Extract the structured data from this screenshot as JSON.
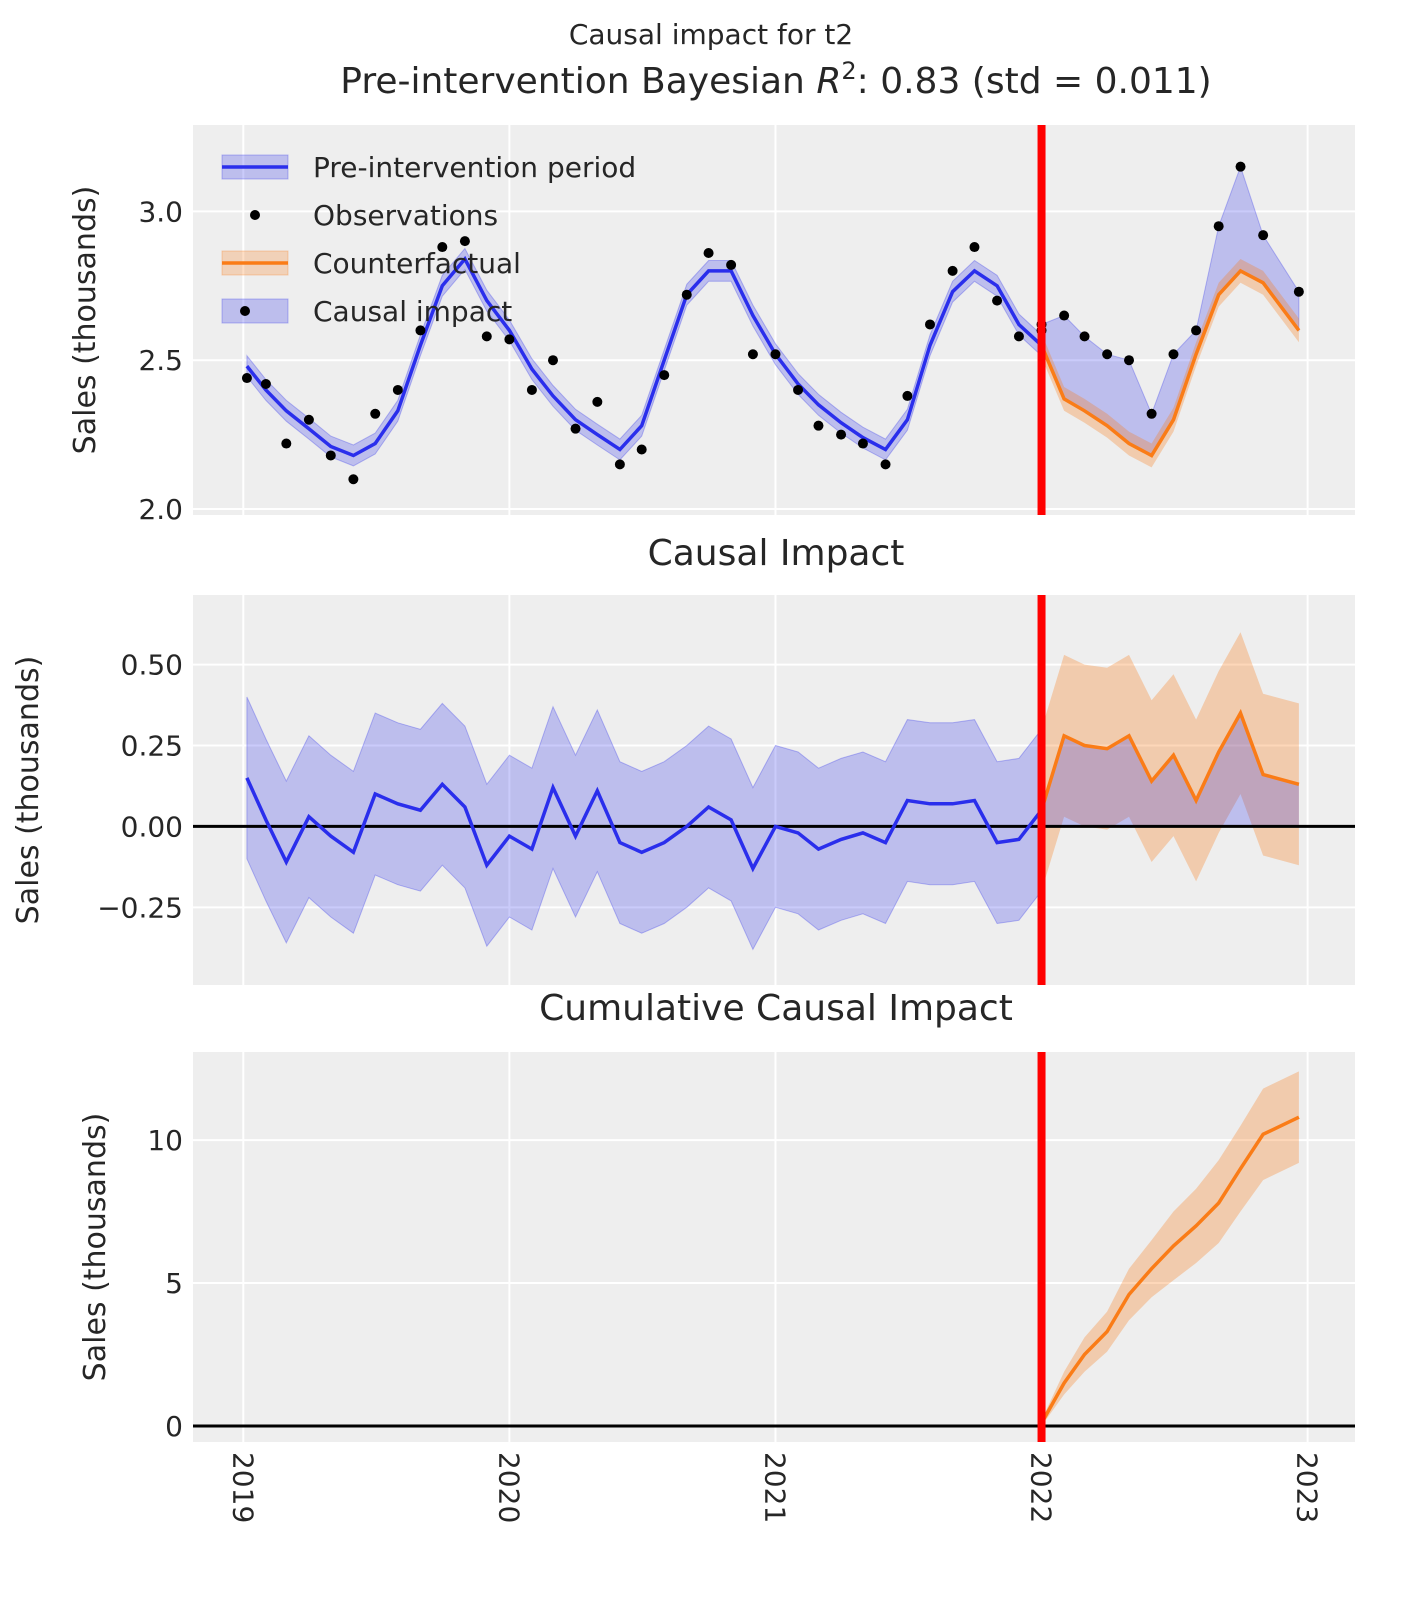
{
  "colors": {
    "pre": "#2a2eec",
    "counterfactual": "#fa7c17",
    "observation": "#000000",
    "intervention": "#ff0000",
    "background": "#eeeeee",
    "grid": "#ffffff"
  },
  "chart_data": [
    {
      "type": "line",
      "suptitle": "Causal impact for t2",
      "title_parts": [
        "Pre-intervention Bayesian ",
        "R",
        "2",
        ": 0.83 (std = 0.011)"
      ],
      "ylabel": "Sales (thousands)",
      "ylim": [
        1.98,
        3.29
      ],
      "xlim": [
        "2018-10-24",
        "2023-03-07"
      ],
      "yticks": [
        {
          "v": 2.0,
          "label": "2.0"
        },
        {
          "v": 2.5,
          "label": "2.5"
        },
        {
          "v": 3.0,
          "label": "3.0"
        }
      ],
      "intervention": "2022-01-01",
      "legend": {
        "placement": "upper-left",
        "entries": [
          "Pre-intervention period",
          "Observations",
          "Counterfactual",
          "Causal impact"
        ]
      },
      "pre": {
        "x": [
          "2019-01-06",
          "2019-02-01",
          "2019-03-01",
          "2019-04-01",
          "2019-05-01",
          "2019-06-01",
          "2019-07-01",
          "2019-08-01",
          "2019-09-01",
          "2019-10-01",
          "2019-11-01",
          "2019-12-01",
          "2020-01-01",
          "2020-02-01",
          "2020-03-01",
          "2020-04-01",
          "2020-05-01",
          "2020-06-01",
          "2020-07-01",
          "2020-08-01",
          "2020-09-01",
          "2020-10-01",
          "2020-11-01",
          "2020-12-01",
          "2021-01-01",
          "2021-02-01",
          "2021-03-01",
          "2021-04-01",
          "2021-05-01",
          "2021-06-01",
          "2021-07-01",
          "2021-08-01",
          "2021-09-01",
          "2021-10-01",
          "2021-11-01",
          "2021-12-01",
          "2022-01-01"
        ],
        "mean": [
          2.48,
          2.4,
          2.33,
          2.27,
          2.21,
          2.18,
          2.22,
          2.33,
          2.55,
          2.75,
          2.84,
          2.7,
          2.6,
          2.47,
          2.38,
          2.3,
          2.25,
          2.2,
          2.28,
          2.5,
          2.72,
          2.8,
          2.8,
          2.65,
          2.52,
          2.42,
          2.35,
          2.29,
          2.24,
          2.2,
          2.3,
          2.55,
          2.73,
          2.8,
          2.75,
          2.62,
          2.55
        ],
        "obs": [
          2.44,
          2.42,
          2.22,
          2.3,
          2.18,
          2.1,
          2.32,
          2.4,
          2.6,
          2.88,
          2.9,
          2.58,
          2.57,
          2.4,
          2.5,
          2.27,
          2.36,
          2.15,
          2.2,
          2.45,
          2.72,
          2.86,
          2.82,
          2.52,
          2.52,
          2.4,
          2.28,
          2.25,
          2.22,
          2.15,
          2.38,
          2.62,
          2.8,
          2.88,
          2.7,
          2.58,
          2.6
        ],
        "band": 0.035
      },
      "post": {
        "x": [
          "2022-01-01",
          "2022-02-01",
          "2022-03-01",
          "2022-04-01",
          "2022-05-01",
          "2022-06-01",
          "2022-07-01",
          "2022-08-01",
          "2022-09-01",
          "2022-10-01",
          "2022-11-01",
          "2022-12-20"
        ],
        "counterfactual": [
          2.55,
          2.37,
          2.33,
          2.28,
          2.22,
          2.18,
          2.3,
          2.52,
          2.72,
          2.8,
          2.76,
          2.6
        ],
        "obs": [
          2.62,
          2.65,
          2.58,
          2.52,
          2.5,
          2.32,
          2.52,
          2.6,
          2.95,
          3.15,
          2.92,
          2.73
        ],
        "band": 0.04
      }
    },
    {
      "type": "line",
      "title": "Causal Impact",
      "ylabel": "Sales (thousands)",
      "ylim": [
        -0.49,
        0.715
      ],
      "yticks": [
        {
          "v": -0.25,
          "label": "−0.25"
        },
        {
          "v": 0,
          "label": "0.00"
        },
        {
          "v": 0.25,
          "label": "0.25"
        },
        {
          "v": 0.5,
          "label": "0.50"
        }
      ],
      "pre_impact": [
        0.15,
        0.02,
        -0.11,
        0.03,
        -0.03,
        -0.08,
        0.1,
        0.07,
        0.05,
        0.13,
        0.06,
        -0.12,
        -0.03,
        -0.07,
        0.12,
        -0.03,
        0.11,
        -0.05,
        -0.08,
        -0.05,
        0.0,
        0.06,
        0.02,
        -0.13,
        0.0,
        -0.02,
        -0.07,
        -0.04,
        -0.02,
        -0.05,
        0.08,
        0.07,
        0.07,
        0.08,
        -0.05,
        -0.04,
        0.05
      ],
      "post_impact": [
        0.05,
        0.28,
        0.25,
        0.24,
        0.28,
        0.14,
        0.22,
        0.08,
        0.23,
        0.35,
        0.16,
        0.13
      ],
      "band": 0.25
    },
    {
      "type": "area",
      "title": "Cumulative Causal Impact",
      "ylabel": "Sales (thousands)",
      "ylim": [
        -0.56,
        13.08
      ],
      "yticks": [
        {
          "v": 0,
          "label": "0"
        },
        {
          "v": 5,
          "label": "5"
        },
        {
          "v": 10,
          "label": "10"
        }
      ],
      "xticks": [
        {
          "v": "2019-01-01",
          "label": "2019"
        },
        {
          "v": "2020-01-01",
          "label": "2020"
        },
        {
          "v": "2021-01-01",
          "label": "2021"
        },
        {
          "v": "2022-01-01",
          "label": "2022"
        },
        {
          "v": "2023-01-01",
          "label": "2023"
        }
      ],
      "cumulative": [
        0.1,
        1.5,
        2.5,
        3.3,
        4.6,
        5.5,
        6.3,
        7.0,
        7.8,
        9.0,
        10.2,
        10.8
      ],
      "lower": [
        0.0,
        1.1,
        1.9,
        2.6,
        3.7,
        4.5,
        5.1,
        5.7,
        6.4,
        7.5,
        8.6,
        9.2
      ],
      "upper": [
        0.2,
        1.9,
        3.1,
        4.0,
        5.5,
        6.5,
        7.5,
        8.3,
        9.3,
        10.5,
        11.8,
        12.4
      ]
    }
  ]
}
